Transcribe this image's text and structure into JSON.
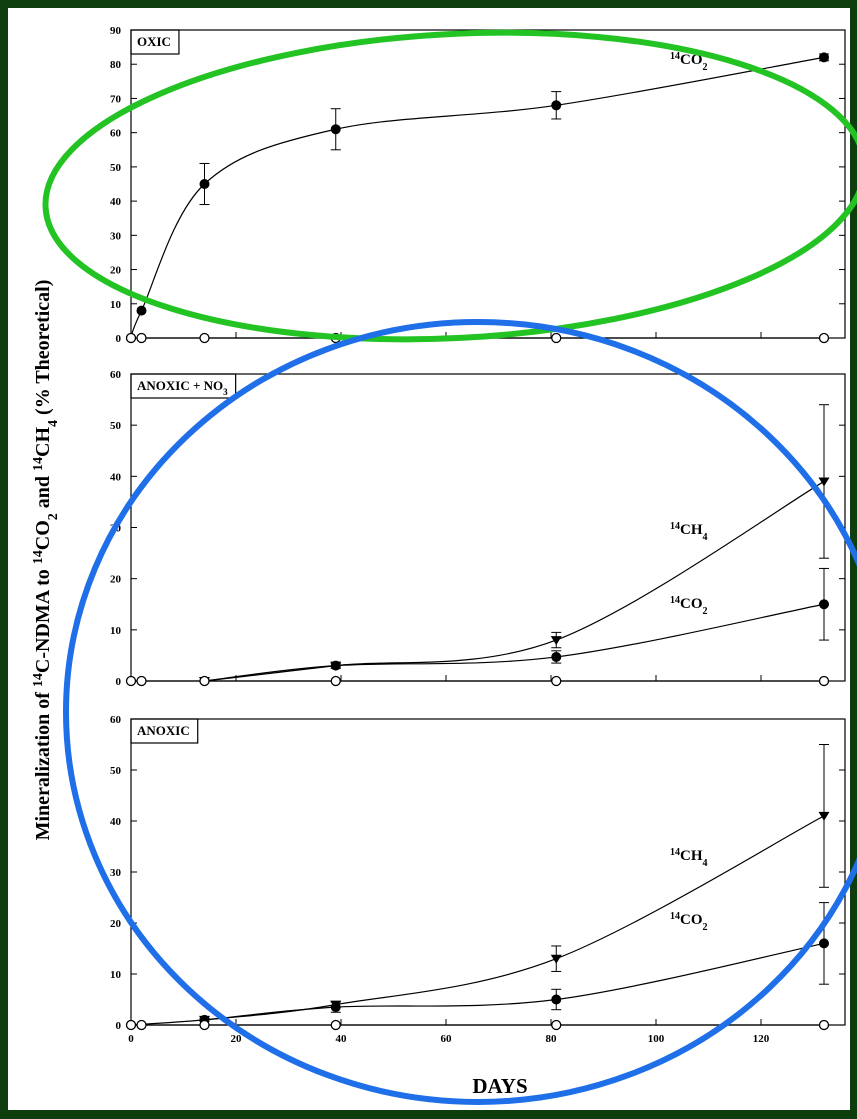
{
  "y_label": [
    "Mineralization of ",
    "14",
    "C-NDMA to ",
    "14",
    "CO",
    "2",
    " and ",
    "14",
    "CH",
    "4",
    " (% Theoretical)"
  ],
  "chart_data": [
    {
      "type": "line",
      "panel_label": [
        "OXIC"
      ],
      "x": [
        0,
        2,
        14,
        39,
        81,
        132
      ],
      "xlim": [
        0,
        136
      ],
      "ylim": [
        0,
        90
      ],
      "yticks": [
        0,
        10,
        20,
        30,
        40,
        50,
        60,
        70,
        80,
        90
      ],
      "series": [
        {
          "label": [
            "14",
            "CO",
            "2"
          ],
          "color": "#000000",
          "marker": "circle",
          "values": [
            0,
            8,
            45,
            61,
            68,
            82
          ],
          "errors": [
            null,
            null,
            6,
            6,
            4,
            1
          ]
        },
        {
          "color": "#000000",
          "marker": "open-circle",
          "values": [
            0,
            0,
            0,
            0,
            0,
            0
          ],
          "errors": [
            null,
            null,
            null,
            null,
            null,
            null
          ]
        }
      ]
    },
    {
      "type": "line",
      "panel_label": [
        "ANOXIC + NO",
        "3"
      ],
      "x": [
        0,
        2,
        14,
        39,
        81,
        132
      ],
      "xlim": [
        0,
        136
      ],
      "ylim": [
        0,
        60
      ],
      "yticks": [
        0,
        10,
        20,
        30,
        40,
        50,
        60
      ],
      "series": [
        {
          "label": [
            "14",
            "CH",
            "4"
          ],
          "color": "#000000",
          "marker": "triangle",
          "values": [
            null,
            null,
            0,
            3,
            8,
            39
          ],
          "errors": [
            null,
            null,
            null,
            0.5,
            1.5,
            15
          ]
        },
        {
          "label": [
            "14",
            "CO",
            "2"
          ],
          "color": "#000000",
          "marker": "circle",
          "values": [
            null,
            null,
            0,
            3,
            4.7,
            15
          ],
          "errors": [
            null,
            null,
            null,
            0.5,
            1.2,
            7
          ]
        },
        {
          "color": "#000000",
          "marker": "open-circle",
          "values": [
            0,
            0,
            0,
            0,
            0,
            0
          ],
          "errors": [
            null,
            null,
            null,
            null,
            null,
            null
          ]
        }
      ]
    },
    {
      "type": "line",
      "panel_label": [
        "ANOXIC"
      ],
      "x": [
        0,
        2,
        14,
        39,
        81,
        132
      ],
      "xlim": [
        0,
        136
      ],
      "ylim": [
        0,
        60
      ],
      "yticks": [
        0,
        10,
        20,
        30,
        40,
        50,
        60
      ],
      "xticks": [
        0,
        20,
        40,
        60,
        80,
        100,
        120
      ],
      "xlabel": "DAYS",
      "series": [
        {
          "label": [
            "14",
            "CH",
            "4"
          ],
          "color": "#000000",
          "marker": "triangle",
          "values": [
            null,
            null,
            1,
            4,
            13,
            41
          ],
          "errors": [
            null,
            null,
            null,
            0.5,
            2.5,
            14
          ]
        },
        {
          "label": [
            "14",
            "CO",
            "2"
          ],
          "color": "#000000",
          "marker": "circle",
          "values": [
            0,
            null,
            1,
            3.5,
            5,
            16
          ],
          "errors": [
            null,
            null,
            0.3,
            1,
            2,
            8
          ]
        },
        {
          "color": "#000000",
          "marker": "open-circle",
          "values": [
            0,
            0,
            0,
            0,
            0,
            0
          ],
          "errors": [
            null,
            null,
            null,
            null,
            null,
            null
          ]
        }
      ]
    }
  ]
}
